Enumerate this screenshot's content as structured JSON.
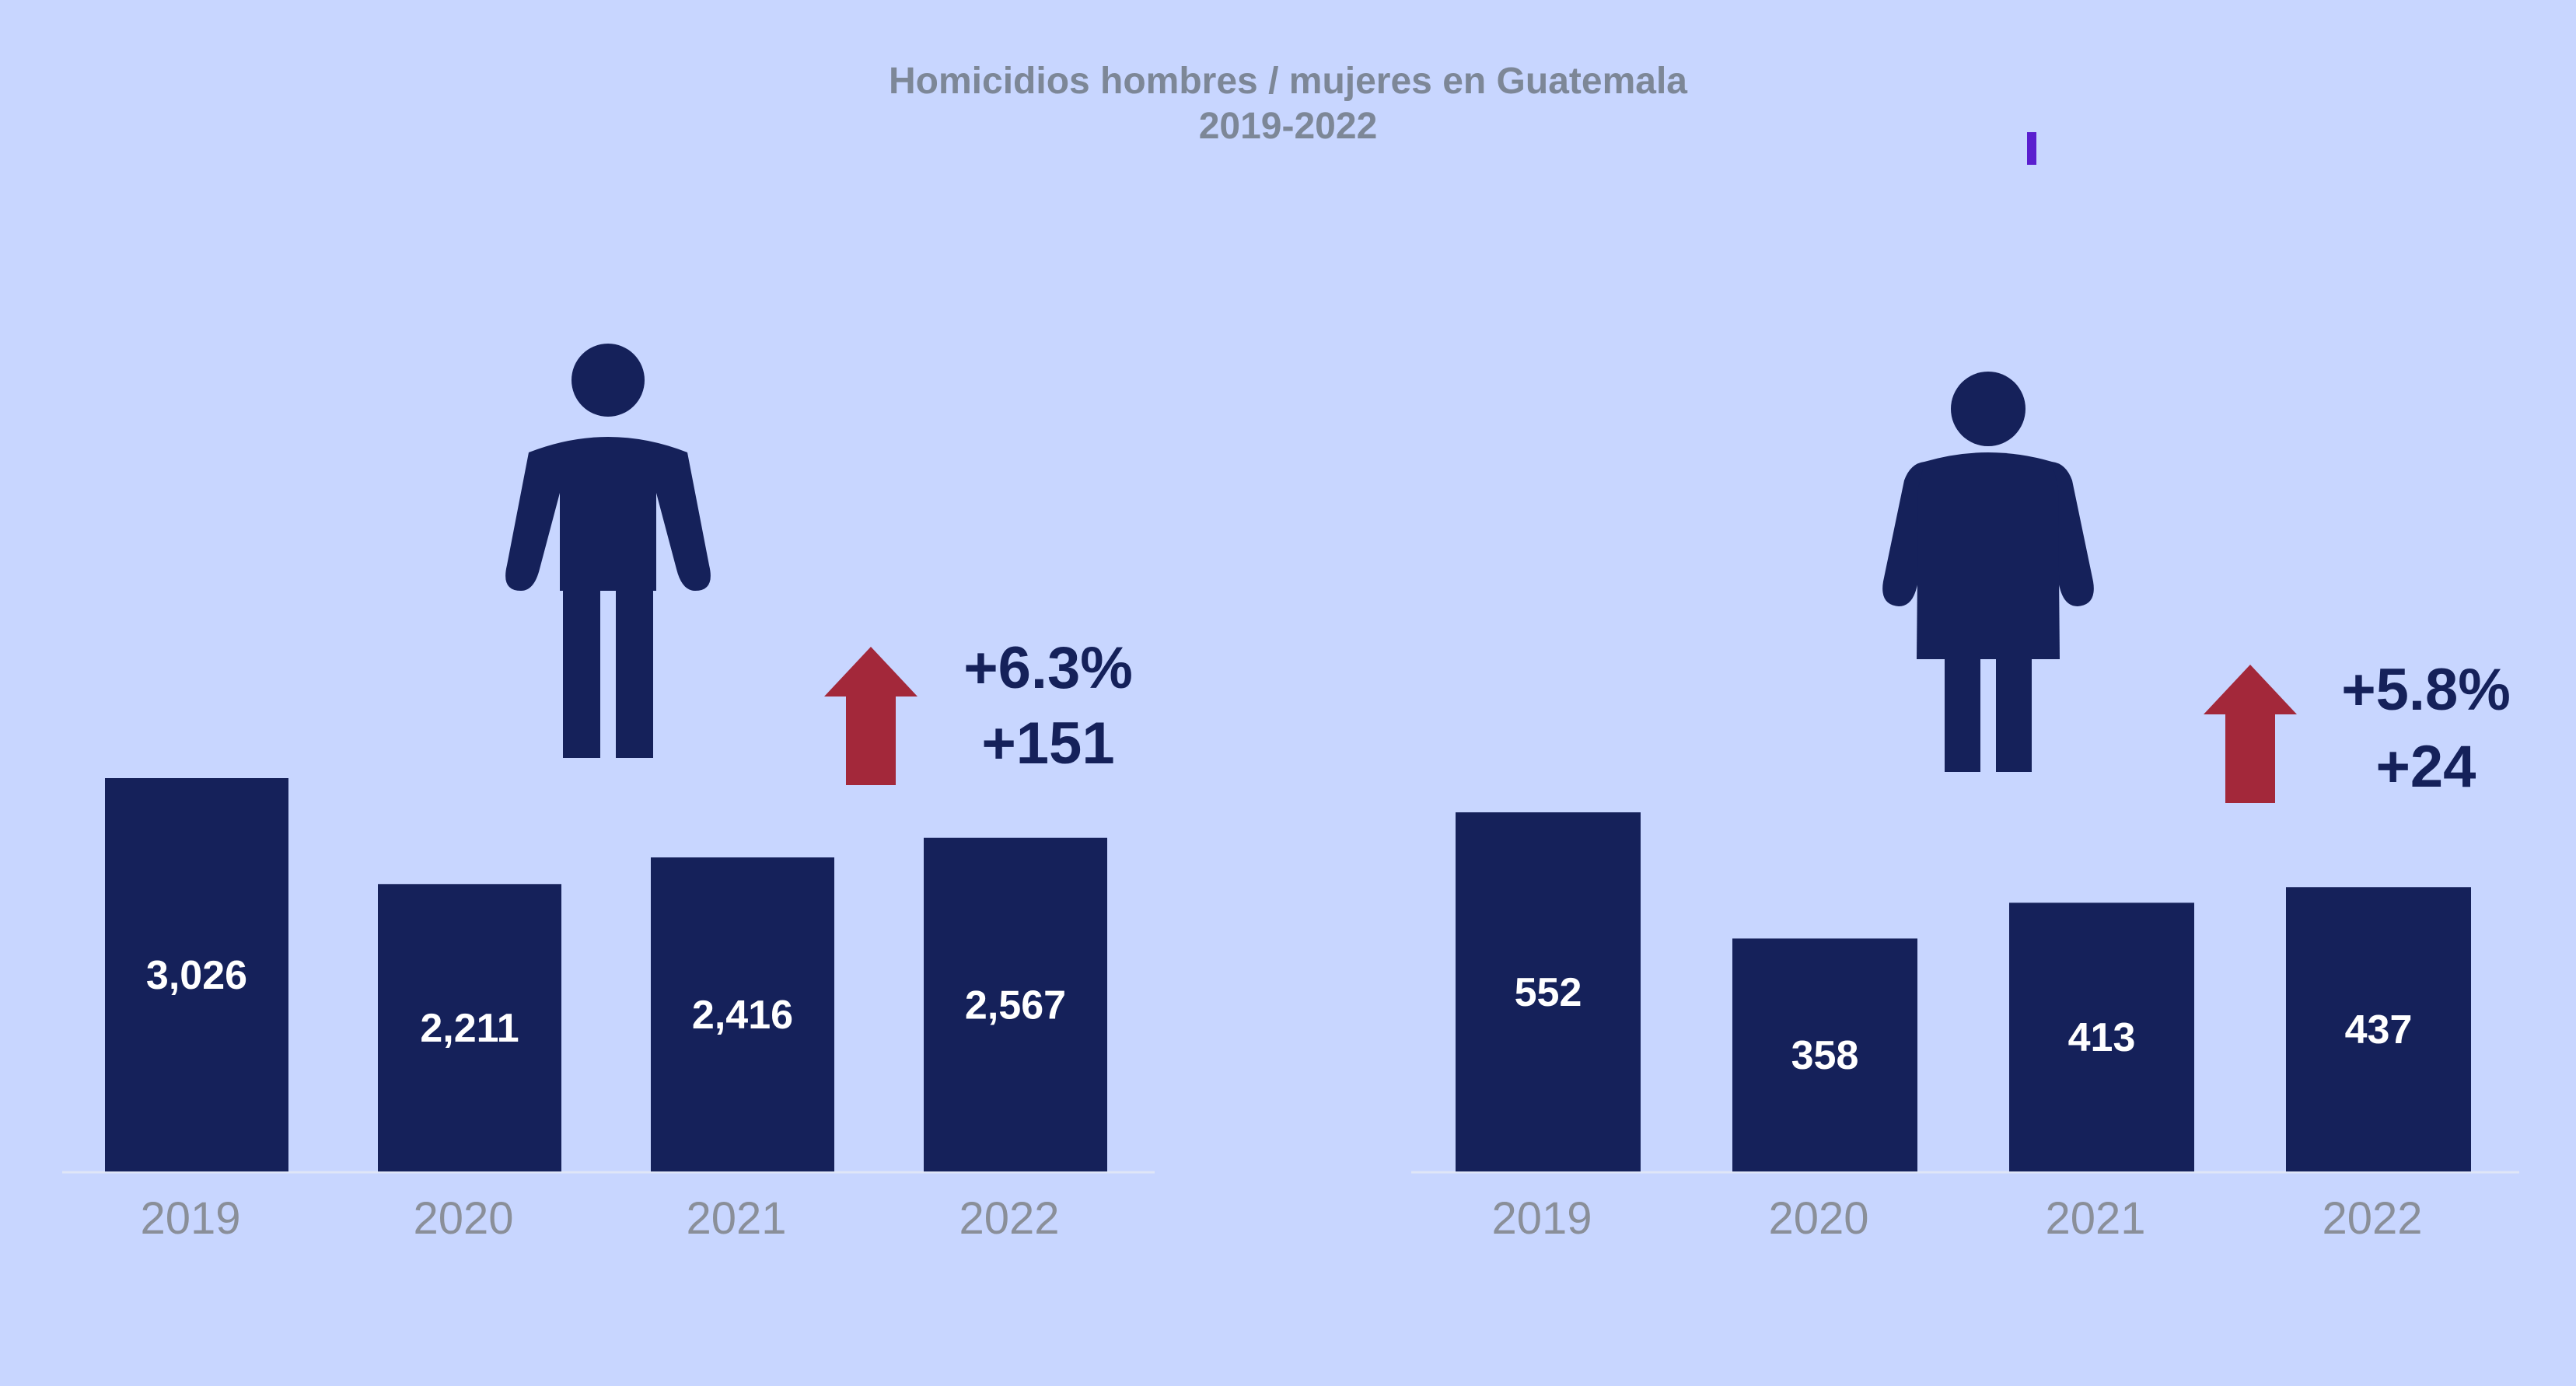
{
  "title": "Homicidios hombres / mujeres en Guatemala",
  "subtitle": "2019-2022",
  "colors": {
    "background": "#c8d6ff",
    "bar": "#15215a",
    "bar_label": "#ffffff",
    "tick_label": "#8a8f99",
    "title": "#7d8797",
    "arrow": "#a3283a",
    "change_text": "#15215a",
    "baseline": "#dfe6f7",
    "accent_mark": "#5a1fcf"
  },
  "icons": {
    "left_panel": "man-icon",
    "right_panel": "woman-icon",
    "change_indicator": "arrow-up-icon"
  },
  "chart_data": [
    {
      "type": "bar",
      "categories": [
        "2019",
        "2020",
        "2021",
        "2022"
      ],
      "values": [
        3026,
        2211,
        2416,
        2567
      ],
      "value_labels": [
        "3,026",
        "2,211",
        "2,416",
        "2,567"
      ],
      "ylim": [
        0,
        3026
      ],
      "change_percent": "+6.3%",
      "change_absolute": "+151",
      "legend": "none",
      "grid": false
    },
    {
      "type": "bar",
      "categories": [
        "2019",
        "2020",
        "2021",
        "2022"
      ],
      "values": [
        552,
        358,
        413,
        437
      ],
      "value_labels": [
        "552",
        "358",
        "413",
        "437"
      ],
      "ylim": [
        0,
        552
      ],
      "change_percent": "+5.8%",
      "change_absolute": "+24",
      "legend": "none",
      "grid": false
    }
  ]
}
